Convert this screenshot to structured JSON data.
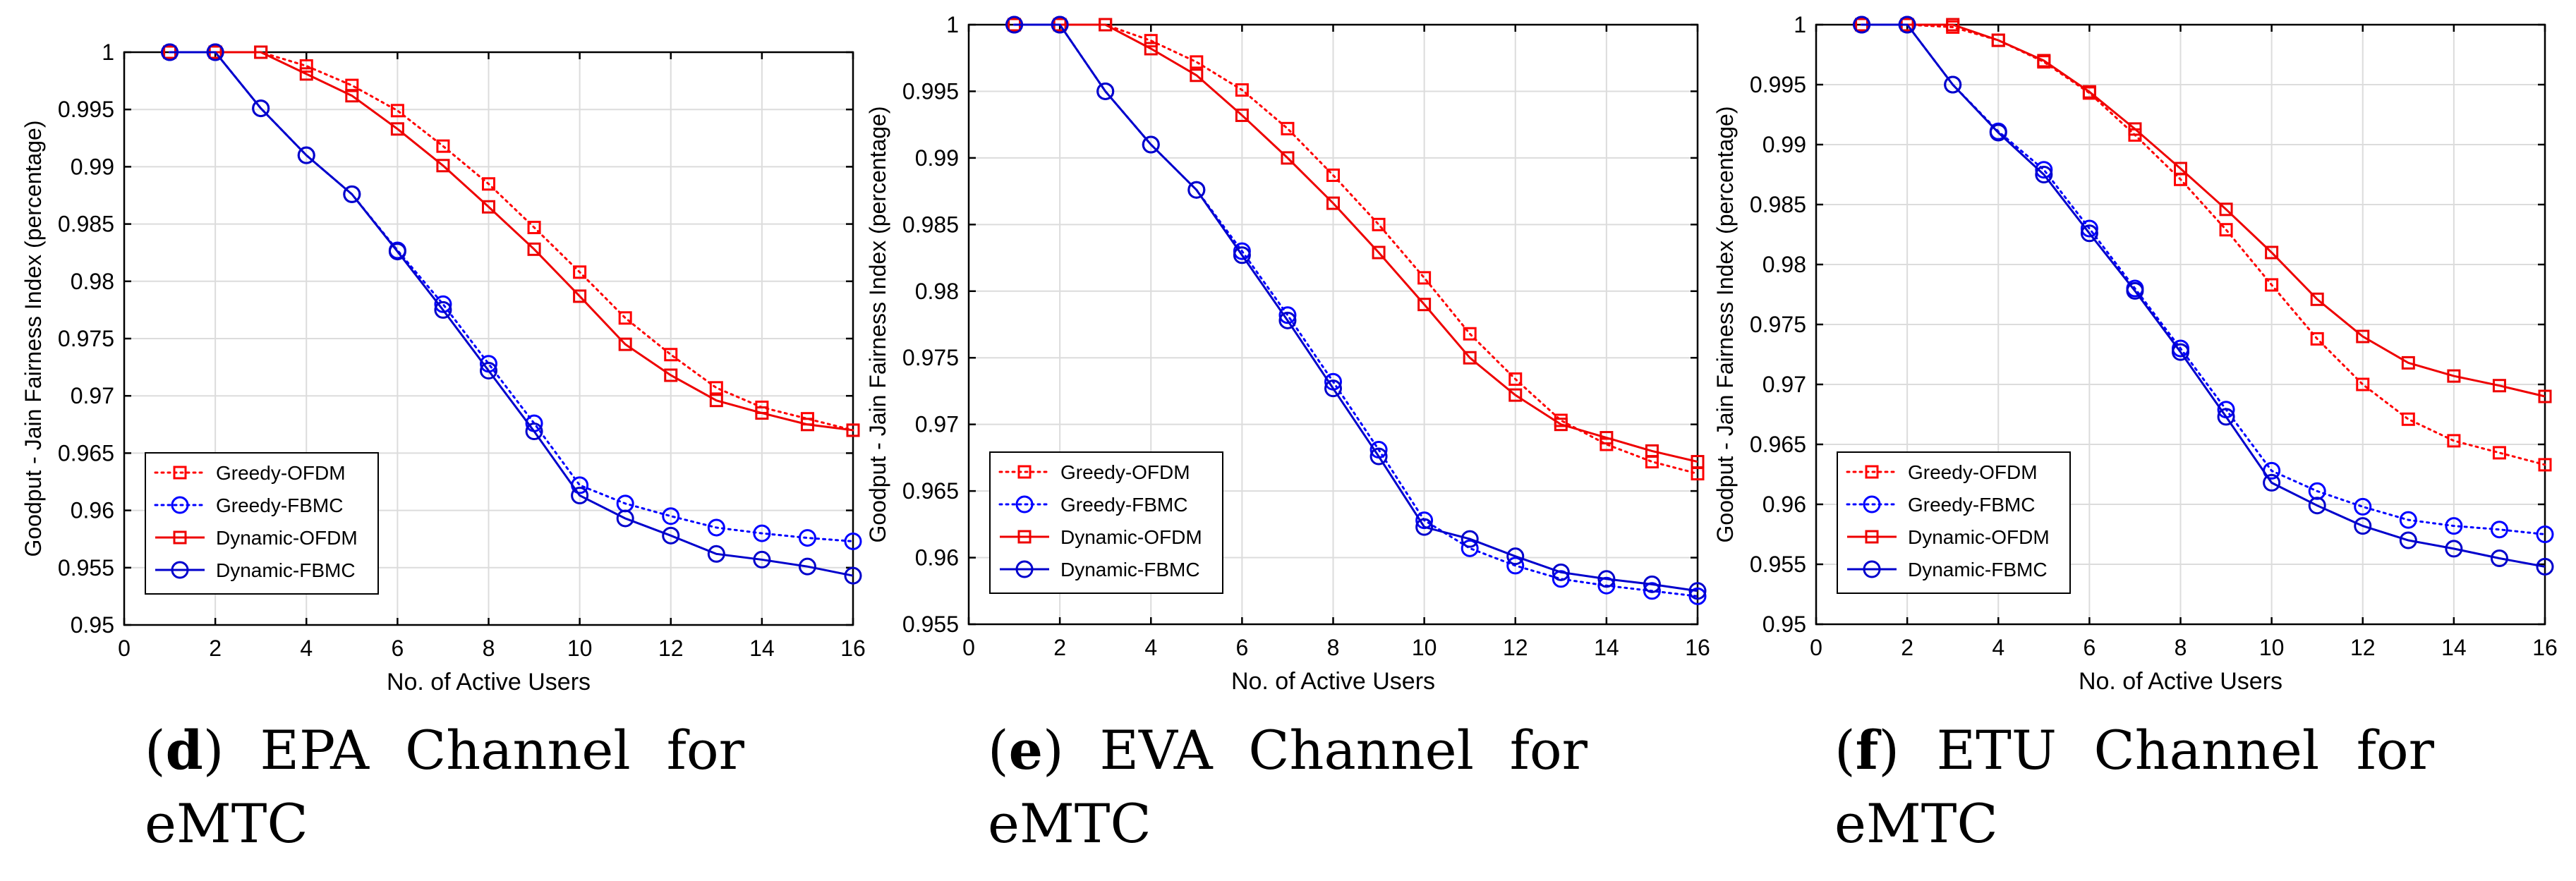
{
  "colors": {
    "greedy_ofdm": "#ff0000",
    "greedy_fbmc": "#0000ff",
    "dynamic_ofdm": "#ee0000",
    "dynamic_fbmc": "#0000cc",
    "axis": "#000000",
    "grid": "#dcdcdc"
  },
  "chart_data": [
    {
      "type": "line",
      "caption": {
        "letter": "d",
        "paren_open": "(",
        "paren_close": ")",
        "line1_rest": "EPA Channel for",
        "line2": "eMTC"
      },
      "xlabel": "No. of Active Users",
      "ylabel": "Goodput - Jain Fairness Index (percentage)",
      "xlim": [
        0,
        16
      ],
      "ylim": [
        0.95,
        1
      ],
      "xticks": [
        0,
        2,
        4,
        6,
        8,
        10,
        12,
        14,
        16
      ],
      "yticks": [
        0.95,
        0.955,
        0.96,
        0.965,
        0.97,
        0.975,
        0.98,
        0.985,
        0.99,
        0.995,
        1
      ],
      "ytick_labels": [
        "0.95",
        "0.955",
        "0.96",
        "0.965",
        "0.97",
        "0.975",
        "0.98",
        "0.985",
        "0.99",
        "0.995",
        "1"
      ],
      "grid": true,
      "legend_position": "bottom-left",
      "x": [
        1,
        2,
        3,
        4,
        5,
        6,
        7,
        8,
        9,
        10,
        11,
        12,
        13,
        14,
        15,
        16
      ],
      "series": [
        {
          "name": "Greedy-OFDM",
          "style": "dotted",
          "marker": "square",
          "color": "#ff0000",
          "values": [
            1,
            1,
            1,
            0.9988,
            0.9971,
            0.9949,
            0.9918,
            0.9885,
            0.9847,
            0.9808,
            0.9768,
            0.9736,
            0.9707,
            0.969,
            0.968,
            0.967
          ]
        },
        {
          "name": "Greedy-FBMC",
          "style": "dotted",
          "marker": "circle",
          "color": "#0000ff",
          "values": [
            1,
            1,
            0.9951,
            0.991,
            0.9876,
            0.9827,
            0.978,
            0.9728,
            0.9676,
            0.9622,
            0.9606,
            0.9595,
            0.9585,
            0.958,
            0.9576,
            0.9573
          ]
        },
        {
          "name": "Dynamic-OFDM",
          "style": "solid",
          "marker": "square",
          "color": "#ee0000",
          "values": [
            1,
            1,
            1,
            0.9981,
            0.9962,
            0.9933,
            0.9901,
            0.9865,
            0.9828,
            0.9787,
            0.9745,
            0.9718,
            0.9696,
            0.9685,
            0.9675,
            0.967
          ]
        },
        {
          "name": "Dynamic-FBMC",
          "style": "solid",
          "marker": "circle",
          "color": "#0000cc",
          "values": [
            1,
            1,
            0.9951,
            0.991,
            0.9876,
            0.9826,
            0.9775,
            0.9722,
            0.9669,
            0.9613,
            0.9593,
            0.9578,
            0.9562,
            0.9557,
            0.9551,
            0.9543
          ]
        }
      ]
    },
    {
      "type": "line",
      "caption": {
        "letter": "e",
        "paren_open": "(",
        "paren_close": ")",
        "line1_rest": "EVA Channel for",
        "line2": "eMTC"
      },
      "xlabel": "No. of Active Users",
      "ylabel": "Goodput - Jain Fairness Index (percentage)",
      "xlim": [
        0,
        16
      ],
      "ylim": [
        0.955,
        1
      ],
      "xticks": [
        0,
        2,
        4,
        6,
        8,
        10,
        12,
        14,
        16
      ],
      "yticks": [
        0.955,
        0.96,
        0.965,
        0.97,
        0.975,
        0.98,
        0.985,
        0.99,
        0.995,
        1
      ],
      "ytick_labels": [
        "0.955",
        "0.96",
        "0.965",
        "0.97",
        "0.975",
        "0.98",
        "0.985",
        "0.99",
        "0.995",
        "1"
      ],
      "grid": true,
      "legend_position": "bottom-left",
      "x": [
        1,
        2,
        3,
        4,
        5,
        6,
        7,
        8,
        9,
        10,
        11,
        12,
        13,
        14,
        15,
        16
      ],
      "series": [
        {
          "name": "Greedy-OFDM",
          "style": "dotted",
          "marker": "square",
          "color": "#ff0000",
          "values": [
            1,
            1,
            1,
            0.9988,
            0.9972,
            0.9951,
            0.9922,
            0.9887,
            0.985,
            0.981,
            0.9768,
            0.9734,
            0.9703,
            0.9685,
            0.9672,
            0.9663
          ]
        },
        {
          "name": "Greedy-FBMC",
          "style": "dotted",
          "marker": "circle",
          "color": "#0000ff",
          "values": [
            1,
            1,
            0.995,
            0.991,
            0.9876,
            0.983,
            0.9782,
            0.9732,
            0.9681,
            0.9628,
            0.9607,
            0.9594,
            0.9584,
            0.9579,
            0.9575,
            0.9571
          ]
        },
        {
          "name": "Dynamic-OFDM",
          "style": "solid",
          "marker": "square",
          "color": "#ee0000",
          "values": [
            1,
            1,
            1,
            0.9982,
            0.9962,
            0.9932,
            0.99,
            0.9866,
            0.9829,
            0.979,
            0.975,
            0.9722,
            0.97,
            0.969,
            0.968,
            0.9672
          ]
        },
        {
          "name": "Dynamic-FBMC",
          "style": "solid",
          "marker": "circle",
          "color": "#0000cc",
          "values": [
            1,
            1,
            0.995,
            0.991,
            0.9876,
            0.9827,
            0.9778,
            0.9727,
            0.9676,
            0.9623,
            0.9614,
            0.9601,
            0.9589,
            0.9584,
            0.958,
            0.9575
          ]
        }
      ]
    },
    {
      "type": "line",
      "caption": {
        "letter": "f",
        "paren_open": "(",
        "paren_close": ")",
        "line1_rest": "ETU Channel for",
        "line2": "eMTC"
      },
      "xlabel": "No. of Active Users",
      "ylabel": "Goodput - Jain Fairness Index (percentage)",
      "xlim": [
        0,
        16
      ],
      "ylim": [
        0.95,
        1
      ],
      "xticks": [
        0,
        2,
        4,
        6,
        8,
        10,
        12,
        14,
        16
      ],
      "yticks": [
        0.95,
        0.955,
        0.96,
        0.965,
        0.97,
        0.975,
        0.98,
        0.985,
        0.99,
        0.995,
        1
      ],
      "ytick_labels": [
        "0.95",
        "0.955",
        "0.96",
        "0.965",
        "0.97",
        "0.975",
        "0.98",
        "0.985",
        "0.99",
        "0.995",
        "1"
      ],
      "grid": true,
      "legend_position": "bottom-left",
      "x": [
        1,
        2,
        3,
        4,
        5,
        6,
        7,
        8,
        9,
        10,
        11,
        12,
        13,
        14,
        15,
        16
      ],
      "series": [
        {
          "name": "Greedy-OFDM",
          "style": "dotted",
          "marker": "square",
          "color": "#ff0000",
          "values": [
            1,
            1,
            0.9998,
            0.9987,
            0.9969,
            0.9943,
            0.9908,
            0.9871,
            0.9829,
            0.9783,
            0.9738,
            0.97,
            0.9671,
            0.9653,
            0.9643,
            0.9633
          ]
        },
        {
          "name": "Greedy-FBMC",
          "style": "dotted",
          "marker": "circle",
          "color": "#0000ff",
          "values": [
            1,
            1,
            0.995,
            0.9911,
            0.9879,
            0.983,
            0.978,
            0.973,
            0.9679,
            0.9628,
            0.9611,
            0.9598,
            0.9587,
            0.9582,
            0.9579,
            0.9575
          ]
        },
        {
          "name": "Dynamic-OFDM",
          "style": "solid",
          "marker": "square",
          "color": "#ee0000",
          "values": [
            1,
            1,
            1,
            0.9987,
            0.997,
            0.9944,
            0.9913,
            0.988,
            0.9846,
            0.981,
            0.9771,
            0.974,
            0.9718,
            0.9707,
            0.9699,
            0.969
          ]
        },
        {
          "name": "Dynamic-FBMC",
          "style": "solid",
          "marker": "circle",
          "color": "#0000cc",
          "values": [
            1,
            1,
            0.995,
            0.991,
            0.9875,
            0.9826,
            0.9778,
            0.9727,
            0.9673,
            0.9618,
            0.9599,
            0.9582,
            0.957,
            0.9563,
            0.9555,
            0.9548
          ]
        }
      ]
    }
  ]
}
